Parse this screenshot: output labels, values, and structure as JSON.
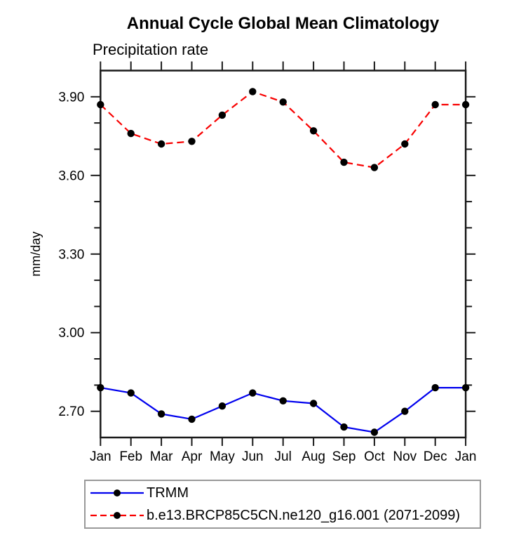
{
  "chart_data": {
    "type": "line",
    "title": "Annual Cycle Global Mean Climatology",
    "subtitle": "Precipitation rate",
    "xlabel": "",
    "ylabel": "mm/day",
    "categories": [
      "Jan",
      "Feb",
      "Mar",
      "Apr",
      "May",
      "Jun",
      "Jul",
      "Aug",
      "Sep",
      "Oct",
      "Nov",
      "Dec",
      "Jan"
    ],
    "series": [
      {
        "name": "TRMM",
        "color": "#0000ee",
        "style": "solid",
        "marker": "circle",
        "marker_color": "#000000",
        "values": [
          2.79,
          2.77,
          2.69,
          2.67,
          2.72,
          2.77,
          2.74,
          2.73,
          2.64,
          2.62,
          2.7,
          2.79,
          2.79
        ]
      },
      {
        "name": "b.e13.BRCP85C5CN.ne120_g16.001 (2071-2099)",
        "color": "#f80000",
        "style": "dashed",
        "marker": "circle",
        "marker_color": "#000000",
        "values": [
          3.87,
          3.76,
          3.72,
          3.73,
          3.83,
          3.92,
          3.88,
          3.77,
          3.65,
          3.63,
          3.72,
          3.87,
          3.87
        ]
      }
    ],
    "ylim": [
      2.6,
      4.0
    ],
    "yticks_major": [
      2.7,
      3.0,
      3.3,
      3.6,
      3.9
    ],
    "ytick_labels": [
      "2.70",
      "3.00",
      "3.30",
      "3.60",
      "3.90"
    ],
    "ytick_minor_step": 0.1,
    "grid": false,
    "ticks": "outward-all-sides",
    "legend_position": "bottom-left",
    "axis_color": "#1a1a1a"
  }
}
